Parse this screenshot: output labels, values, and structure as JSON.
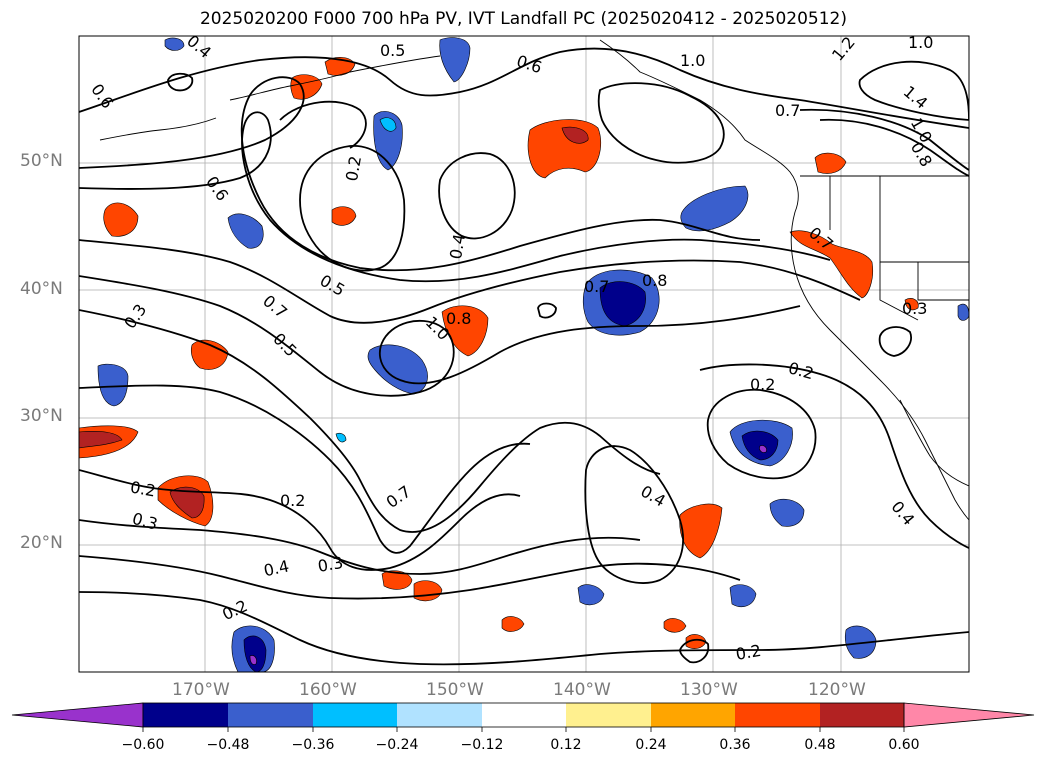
{
  "title": "2025020200 F000 700 hPa PV, IVT Landfall PC (2025020412 - 2025020512)",
  "map": {
    "lat_labels": [
      "50°N",
      "40°N",
      "30°N",
      "20°N"
    ],
    "lon_labels": [
      "170°W",
      "160°W",
      "150°W",
      "140°W",
      "130°W",
      "120°W"
    ],
    "contour_labels": [
      "0.6",
      "0.6",
      "0.6",
      "1.0",
      "1.0",
      "1.2",
      "1.4",
      "1.0",
      "0.8",
      "0.7",
      "0.5",
      "0.2",
      "0.4",
      "0.5",
      "0.7",
      "0.5",
      "0.3",
      "0.7",
      "1.0",
      "0.8",
      "0.7",
      "0.8",
      "0.3",
      "0.2",
      "0.2",
      "0.2",
      "0.3",
      "0.4",
      "0.3",
      "0.7",
      "0.2",
      "0.4",
      "0.2",
      "0.2",
      "0.4",
      "0.4"
    ]
  },
  "colorbar": {
    "colors": [
      "#9932cc",
      "#00008b",
      "#3a5fcd",
      "#00bfff",
      "#b0e2ff",
      "#ffffff",
      "#fff08f",
      "#ffa500",
      "#ff4500",
      "#b22222",
      "#ff87a8"
    ],
    "tick_labels": [
      "−0.60",
      "−0.48",
      "−0.36",
      "−0.24",
      "−0.12",
      "0.12",
      "0.24",
      "0.36",
      "0.48",
      "0.60"
    ]
  }
}
